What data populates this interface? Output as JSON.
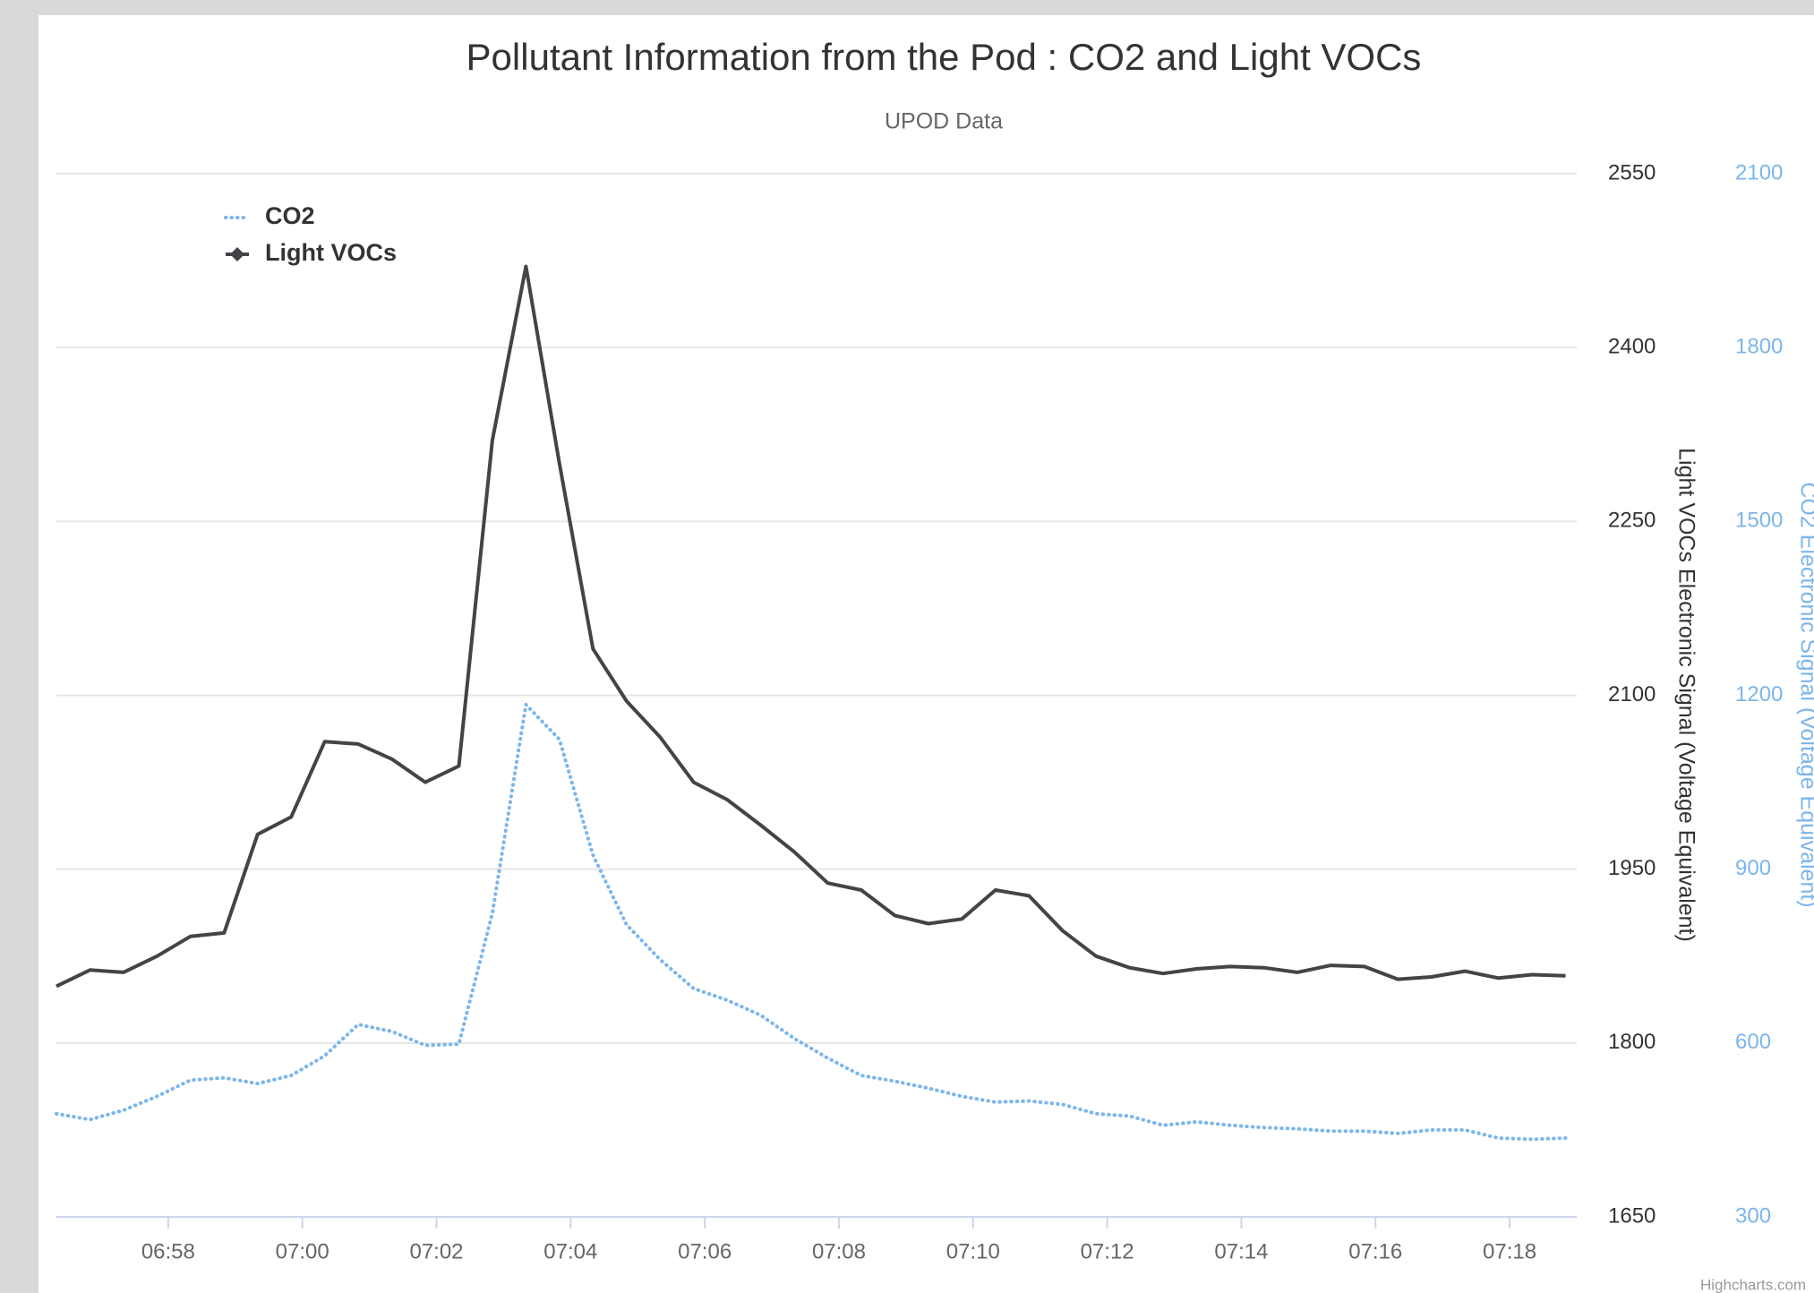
{
  "chart_data": {
    "type": "line",
    "title": "Pollutant Information from the Pod : CO2 and Light VOCs",
    "subtitle": "UPOD Data",
    "y_label": "Light VOCs Electronic Signal (Voltage Equivalent)",
    "y2_label": "CO2 Electronic Signal (Voltage Equivalent)",
    "credits": "Highcharts.com",
    "legend": "top-left",
    "grid": true,
    "x": [
      "06:56:20",
      "06:56:50",
      "06:57:20",
      "06:57:50",
      "06:58:20",
      "06:58:50",
      "06:59:20",
      "06:59:50",
      "07:00:20",
      "07:00:50",
      "07:01:20",
      "07:01:50",
      "07:02:20",
      "07:02:50",
      "07:03:20",
      "07:03:50",
      "07:04:20",
      "07:04:50",
      "07:05:20",
      "07:05:50",
      "07:06:20",
      "07:06:50",
      "07:07:20",
      "07:07:50",
      "07:08:20",
      "07:08:50",
      "07:09:20",
      "07:09:50",
      "07:10:20",
      "07:10:50",
      "07:11:20",
      "07:11:50",
      "07:12:20",
      "07:12:50",
      "07:13:20",
      "07:13:50",
      "07:14:20",
      "07:14:50",
      "07:15:20",
      "07:15:50",
      "07:16:20",
      "07:16:50",
      "07:17:20",
      "07:17:50",
      "07:18:20",
      "07:18:50"
    ],
    "xlim": [
      "06:56:20",
      "07:19:00"
    ],
    "xticks": [
      "06:58",
      "07:00",
      "07:02",
      "07:04",
      "07:06",
      "07:08",
      "07:10",
      "07:12",
      "07:14",
      "07:16",
      "07:18"
    ],
    "ylim": [
      1650,
      2550
    ],
    "yticks": [
      1650,
      1800,
      1950,
      2100,
      2250,
      2400,
      2550
    ],
    "y2lim": [
      300,
      2100
    ],
    "y2ticks": [
      300,
      600,
      900,
      1200,
      1500,
      1800,
      2100
    ],
    "series": [
      {
        "name": "CO2",
        "color": "#7cb5ec",
        "axis": "y2",
        "dash": "dotted",
        "values": [
          478,
          468,
          484,
          508,
          536,
          540,
          530,
          544,
          578,
          632,
          620,
          596,
          598,
          824,
          1184,
          1124,
          924,
          804,
          744,
          694,
          674,
          648,
          608,
          574,
          544,
          534,
          522,
          508,
          498,
          500,
          494,
          478,
          474,
          458,
          464,
          458,
          454,
          452,
          448,
          448,
          444,
          450,
          450,
          436,
          434,
          436
        ]
      },
      {
        "name": "Light VOCs",
        "color": "#434348",
        "axis": "y",
        "dash": "solid",
        "values": [
          1849,
          1863,
          1861,
          1875,
          1892,
          1895,
          1980,
          1995,
          2060,
          2058,
          2045,
          2025,
          2039,
          2320,
          2470,
          2300,
          2140,
          2095,
          2064,
          2025,
          2010,
          1988,
          1965,
          1938,
          1932,
          1910,
          1903,
          1907,
          1932,
          1927,
          1897,
          1875,
          1865,
          1860,
          1864,
          1866,
          1865,
          1861,
          1867,
          1866,
          1855,
          1857,
          1862,
          1856,
          1859,
          1858
        ]
      }
    ]
  }
}
